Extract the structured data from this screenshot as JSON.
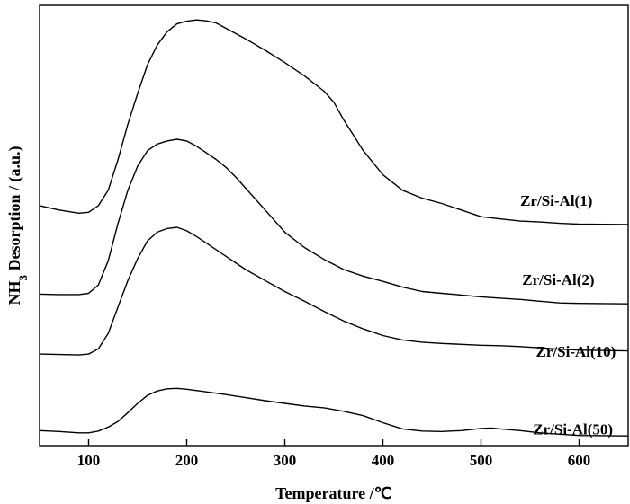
{
  "chart_data": {
    "type": "line",
    "xlabel": "Temperature /℃",
    "ylabel_main": "NH",
    "ylabel_sub": "3",
    "ylabel_rest": " Desorption / (a.u.)",
    "xlim": [
      50,
      650
    ],
    "ylim": [
      0,
      100
    ],
    "x_ticks": [
      100,
      200,
      300,
      400,
      500,
      600
    ],
    "grid": false,
    "legend": "inline labels at right",
    "series": [
      {
        "name": "Zr/Si-Al(1)",
        "label_x": 540,
        "label_y": 54.5,
        "points": [
          [
            50,
            54.5
          ],
          [
            70,
            53.5
          ],
          [
            90,
            52.8
          ],
          [
            100,
            53
          ],
          [
            110,
            54.5
          ],
          [
            120,
            58
          ],
          [
            130,
            65
          ],
          [
            140,
            73
          ],
          [
            150,
            80
          ],
          [
            160,
            86.5
          ],
          [
            170,
            91
          ],
          [
            180,
            94
          ],
          [
            190,
            95.8
          ],
          [
            200,
            96.4
          ],
          [
            210,
            96.7
          ],
          [
            220,
            96.5
          ],
          [
            230,
            96
          ],
          [
            240,
            94.8
          ],
          [
            250,
            93.6
          ],
          [
            260,
            92.4
          ],
          [
            280,
            89.8
          ],
          [
            300,
            87
          ],
          [
            320,
            84
          ],
          [
            340,
            80.5
          ],
          [
            350,
            78
          ],
          [
            360,
            74
          ],
          [
            380,
            67
          ],
          [
            400,
            61.5
          ],
          [
            420,
            58
          ],
          [
            440,
            56.2
          ],
          [
            460,
            55
          ],
          [
            480,
            53.5
          ],
          [
            500,
            52
          ],
          [
            520,
            51.5
          ],
          [
            540,
            51
          ],
          [
            560,
            50.8
          ],
          [
            580,
            50.5
          ],
          [
            600,
            50.3
          ],
          [
            650,
            50.2
          ]
        ]
      },
      {
        "name": "Zr/Si-Al(2)",
        "label_x": 542,
        "label_y": 36.5,
        "points": [
          [
            50,
            34.4
          ],
          [
            70,
            34.3
          ],
          [
            90,
            34.3
          ],
          [
            100,
            34.6
          ],
          [
            110,
            36.5
          ],
          [
            120,
            42
          ],
          [
            130,
            50.5
          ],
          [
            140,
            58
          ],
          [
            150,
            63.5
          ],
          [
            160,
            67
          ],
          [
            170,
            68.5
          ],
          [
            180,
            69.2
          ],
          [
            190,
            69.6
          ],
          [
            200,
            69.2
          ],
          [
            210,
            68
          ],
          [
            220,
            66.5
          ],
          [
            230,
            65
          ],
          [
            240,
            63.2
          ],
          [
            250,
            61
          ],
          [
            260,
            58.5
          ],
          [
            280,
            53.5
          ],
          [
            300,
            48.5
          ],
          [
            320,
            45
          ],
          [
            340,
            42.3
          ],
          [
            360,
            40
          ],
          [
            380,
            38.5
          ],
          [
            400,
            37.3
          ],
          [
            420,
            36
          ],
          [
            440,
            35
          ],
          [
            460,
            34.6
          ],
          [
            480,
            34.2
          ],
          [
            500,
            33.8
          ],
          [
            520,
            33.5
          ],
          [
            540,
            33.2
          ],
          [
            560,
            32.8
          ],
          [
            580,
            32.4
          ],
          [
            600,
            32.3
          ],
          [
            650,
            32.2
          ]
        ]
      },
      {
        "name": "Zr/Si-Al(10)",
        "label_x": 556,
        "label_y": 20.2,
        "points": [
          [
            50,
            20.8
          ],
          [
            70,
            20.7
          ],
          [
            90,
            20.6
          ],
          [
            100,
            20.8
          ],
          [
            110,
            22
          ],
          [
            120,
            25.5
          ],
          [
            130,
            31.5
          ],
          [
            140,
            37.5
          ],
          [
            150,
            42.5
          ],
          [
            160,
            46.5
          ],
          [
            170,
            48.5
          ],
          [
            180,
            49.3
          ],
          [
            190,
            49.6
          ],
          [
            200,
            48.8
          ],
          [
            210,
            47.5
          ],
          [
            220,
            46
          ],
          [
            240,
            43
          ],
          [
            260,
            40
          ],
          [
            280,
            37.5
          ],
          [
            300,
            35
          ],
          [
            320,
            32.8
          ],
          [
            340,
            30.5
          ],
          [
            360,
            28.3
          ],
          [
            380,
            26.5
          ],
          [
            400,
            25
          ],
          [
            420,
            24
          ],
          [
            440,
            23.5
          ],
          [
            460,
            23.2
          ],
          [
            480,
            23
          ],
          [
            500,
            22.8
          ],
          [
            520,
            22.7
          ],
          [
            540,
            22.5
          ],
          [
            560,
            22.2
          ],
          [
            580,
            21.9
          ],
          [
            600,
            21.7
          ],
          [
            650,
            21.5
          ]
        ]
      },
      {
        "name": "Zr/Si-Al(50)",
        "label_x": 553,
        "label_y": 2.6,
        "points": [
          [
            50,
            3.4
          ],
          [
            70,
            3.2
          ],
          [
            90,
            2.9
          ],
          [
            100,
            2.9
          ],
          [
            110,
            3.3
          ],
          [
            120,
            4.2
          ],
          [
            130,
            5.5
          ],
          [
            140,
            7.5
          ],
          [
            150,
            9.6
          ],
          [
            160,
            11.4
          ],
          [
            170,
            12.4
          ],
          [
            180,
            12.9
          ],
          [
            190,
            13
          ],
          [
            200,
            12.8
          ],
          [
            220,
            12.2
          ],
          [
            240,
            11.6
          ],
          [
            260,
            10.9
          ],
          [
            280,
            10.2
          ],
          [
            300,
            9.6
          ],
          [
            320,
            9
          ],
          [
            340,
            8.6
          ],
          [
            360,
            7.8
          ],
          [
            380,
            6.8
          ],
          [
            400,
            5.2
          ],
          [
            420,
            3.8
          ],
          [
            440,
            3.3
          ],
          [
            460,
            3.2
          ],
          [
            480,
            3.4
          ],
          [
            500,
            3.9
          ],
          [
            510,
            4
          ],
          [
            520,
            3.8
          ],
          [
            540,
            3.4
          ],
          [
            560,
            2.9
          ],
          [
            580,
            2.6
          ],
          [
            600,
            2.3
          ],
          [
            650,
            2.2
          ]
        ]
      }
    ]
  }
}
